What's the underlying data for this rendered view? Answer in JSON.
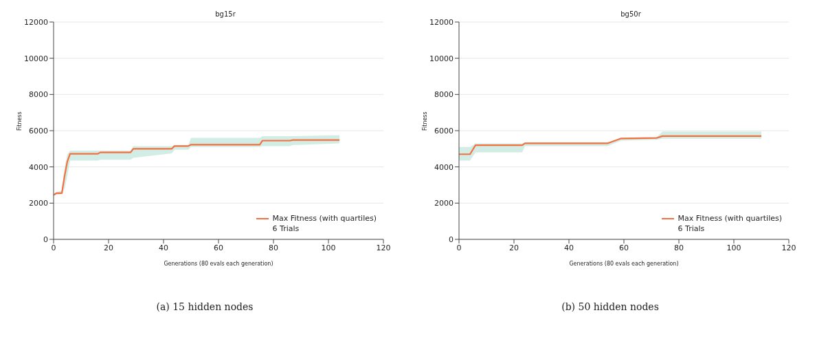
{
  "chart_data": [
    {
      "type": "line",
      "title": "bg15r",
      "xlabel": "Generations (80 evals each generation)",
      "ylabel": "Fitness",
      "xlim": [
        0,
        120
      ],
      "xticks": [
        0,
        20,
        40,
        60,
        80,
        100,
        120
      ],
      "ylim": [
        0,
        12000
      ],
      "yticks": [
        0,
        2000,
        4000,
        6000,
        8000,
        10000,
        12000
      ],
      "grid": "y",
      "legend": "bottom right",
      "series": [
        {
          "name": "Max Fitness (with quartiles)",
          "color": "#f4703f",
          "x": [
            0,
            1,
            3,
            4,
            5,
            6,
            16,
            17,
            28,
            29,
            43,
            44,
            49,
            50,
            75,
            76,
            86,
            87,
            104
          ],
          "values": [
            2450,
            2550,
            2550,
            3500,
            4300,
            4720,
            4720,
            4800,
            4800,
            5000,
            5000,
            5150,
            5150,
            5230,
            5230,
            5450,
            5450,
            5480,
            5480
          ],
          "lower": [
            2400,
            2450,
            2500,
            2800,
            3500,
            4350,
            4350,
            4400,
            4400,
            4500,
            4750,
            4950,
            4950,
            5100,
            5100,
            5150,
            5150,
            5200,
            5300
          ],
          "upper": [
            2500,
            2600,
            2700,
            4000,
            4700,
            4900,
            4900,
            4900,
            4900,
            5150,
            5150,
            5200,
            5200,
            5600,
            5600,
            5700,
            5700,
            5700,
            5750
          ]
        }
      ],
      "annotations": [
        "6 Trials",
        "(a) 15 hidden nodes"
      ]
    },
    {
      "type": "line",
      "title": "bg50r",
      "xlabel": "Generations (80 evals each generation)",
      "ylabel": "Fitness",
      "xlim": [
        0,
        120
      ],
      "xticks": [
        0,
        20,
        40,
        60,
        80,
        100,
        120
      ],
      "ylim": [
        0,
        12000
      ],
      "yticks": [
        0,
        2000,
        4000,
        6000,
        8000,
        10000,
        12000
      ],
      "grid": "y",
      "legend": "bottom right",
      "series": [
        {
          "name": "Max Fitness (with quartiles)",
          "color": "#f4703f",
          "x": [
            0,
            4,
            6,
            23,
            24,
            54,
            59,
            72,
            74,
            110
          ],
          "values": [
            4700,
            4700,
            5200,
            5200,
            5300,
            5300,
            5570,
            5600,
            5700,
            5700
          ],
          "lower": [
            4350,
            4350,
            4800,
            4800,
            5150,
            5150,
            5450,
            5500,
            5550,
            5550
          ],
          "upper": [
            5100,
            5100,
            5300,
            5300,
            5350,
            5350,
            5600,
            5650,
            5950,
            5950
          ]
        }
      ],
      "annotations": [
        "6 Trials",
        "(b) 50 hidden nodes"
      ]
    }
  ]
}
